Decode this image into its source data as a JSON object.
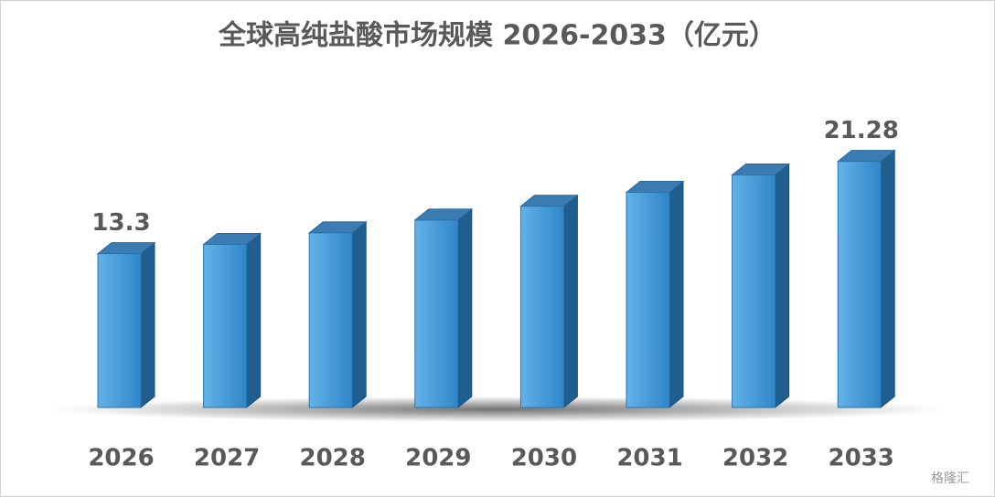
{
  "chart_data": {
    "type": "bar3d",
    "title": "全球高纯盐酸市场规模 2026-2033（亿元）",
    "categories": [
      "2026",
      "2027",
      "2028",
      "2029",
      "2030",
      "2031",
      "2032",
      "2033"
    ],
    "values": [
      13.3,
      14.1,
      15.1,
      16.2,
      17.4,
      18.6,
      20.1,
      21.28
    ],
    "value_labels": [
      "13.3",
      null,
      null,
      null,
      null,
      null,
      null,
      "21.28"
    ],
    "color": "#3d93d6",
    "watermark": "格隆汇"
  }
}
